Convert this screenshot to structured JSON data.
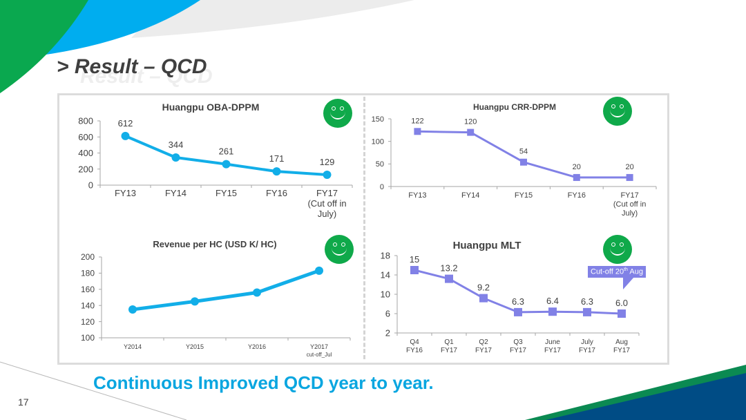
{
  "slide": {
    "title": "> Result – QCD",
    "title_shadow": "Result – QCD",
    "conclusion": "Continuous Improved QCD year to year.",
    "page_number": "17",
    "colors": {
      "green": "#0aa84f",
      "blue": "#00adef",
      "light_gray": "#ececec",
      "navy": "#004c85",
      "deep_green": "#0b8a52",
      "series_blue": "#12aee8",
      "series_purple": "#8181e6",
      "smiley_green": "#0fa94a",
      "conclusion_text": "#0aa6e0"
    },
    "status_icons": [
      "smiley-face-icon",
      "smiley-face-icon",
      "smiley-face-icon",
      "smiley-face-icon"
    ],
    "callout": {
      "prefix": "Cut-off 20",
      "sup": "th",
      "suffix": " Aug"
    }
  },
  "chart_data": [
    {
      "id": "oba",
      "type": "line",
      "title": "Huangpu OBA-DPPM",
      "categories": [
        [
          "FY13"
        ],
        [
          "FY14"
        ],
        [
          "FY15"
        ],
        [
          "FY16"
        ],
        [
          "FY17",
          "(Cut off in",
          "July)"
        ]
      ],
      "values": [
        612,
        344,
        261,
        171,
        129
      ],
      "data_labels": [
        "612",
        "344",
        "261",
        "171",
        "129"
      ],
      "ylim": [
        0,
        800
      ],
      "yticks": [
        0,
        200,
        400,
        600,
        800
      ],
      "marker": "circle",
      "color": "#12aee8",
      "xlabel": "",
      "ylabel": "",
      "grid": false,
      "legend": "none"
    },
    {
      "id": "crr",
      "type": "line",
      "title": "Huangpu CRR-DPPM",
      "categories": [
        [
          "FY13"
        ],
        [
          "FY14"
        ],
        [
          "FY15"
        ],
        [
          "FY16"
        ],
        [
          "FY17",
          "(Cut off in",
          "July)"
        ]
      ],
      "values": [
        122,
        120,
        54,
        20,
        20
      ],
      "data_labels": [
        "122",
        "120",
        "54",
        "20",
        "20"
      ],
      "ylim": [
        0,
        150
      ],
      "yticks": [
        0,
        50,
        100,
        150
      ],
      "marker": "square",
      "color": "#8181e6",
      "xlabel": "",
      "ylabel": "",
      "grid": false,
      "legend": "none"
    },
    {
      "id": "rev",
      "type": "line",
      "title": "Revenue per HC (USD K/ HC)",
      "categories": [
        [
          "Y2014"
        ],
        [
          "Y2015"
        ],
        [
          "Y2016"
        ],
        [
          "Y2017",
          "cut-off_Jul"
        ]
      ],
      "values": [
        135,
        145,
        156,
        183
      ],
      "data_labels": [],
      "ylim": [
        100,
        200
      ],
      "yticks": [
        100,
        120,
        140,
        160,
        180,
        200
      ],
      "marker": "circle",
      "color": "#12aee8",
      "xlabel": "",
      "ylabel": "",
      "grid": false,
      "legend": "none"
    },
    {
      "id": "mlt",
      "type": "line",
      "title": "Huangpu MLT",
      "categories": [
        [
          "Q4",
          "FY16"
        ],
        [
          "Q1",
          "FY17"
        ],
        [
          "Q2",
          "FY17"
        ],
        [
          "Q3",
          "FY17"
        ],
        [
          "June",
          "FY17"
        ],
        [
          "July",
          "FY17"
        ],
        [
          "Aug",
          "FY17"
        ]
      ],
      "values": [
        15,
        13.2,
        9.2,
        6.3,
        6.4,
        6.3,
        6.0
      ],
      "data_labels": [
        "15",
        "13.2",
        "9.2",
        "6.3",
        "6.4",
        "6.3",
        "6.0"
      ],
      "ylim": [
        2,
        18
      ],
      "yticks": [
        2,
        6,
        10,
        14,
        18
      ],
      "marker": "square",
      "color": "#8181e6",
      "xlabel": "",
      "ylabel": "",
      "grid": false,
      "legend": "none",
      "annotation": "Cut-off 20th Aug"
    }
  ]
}
